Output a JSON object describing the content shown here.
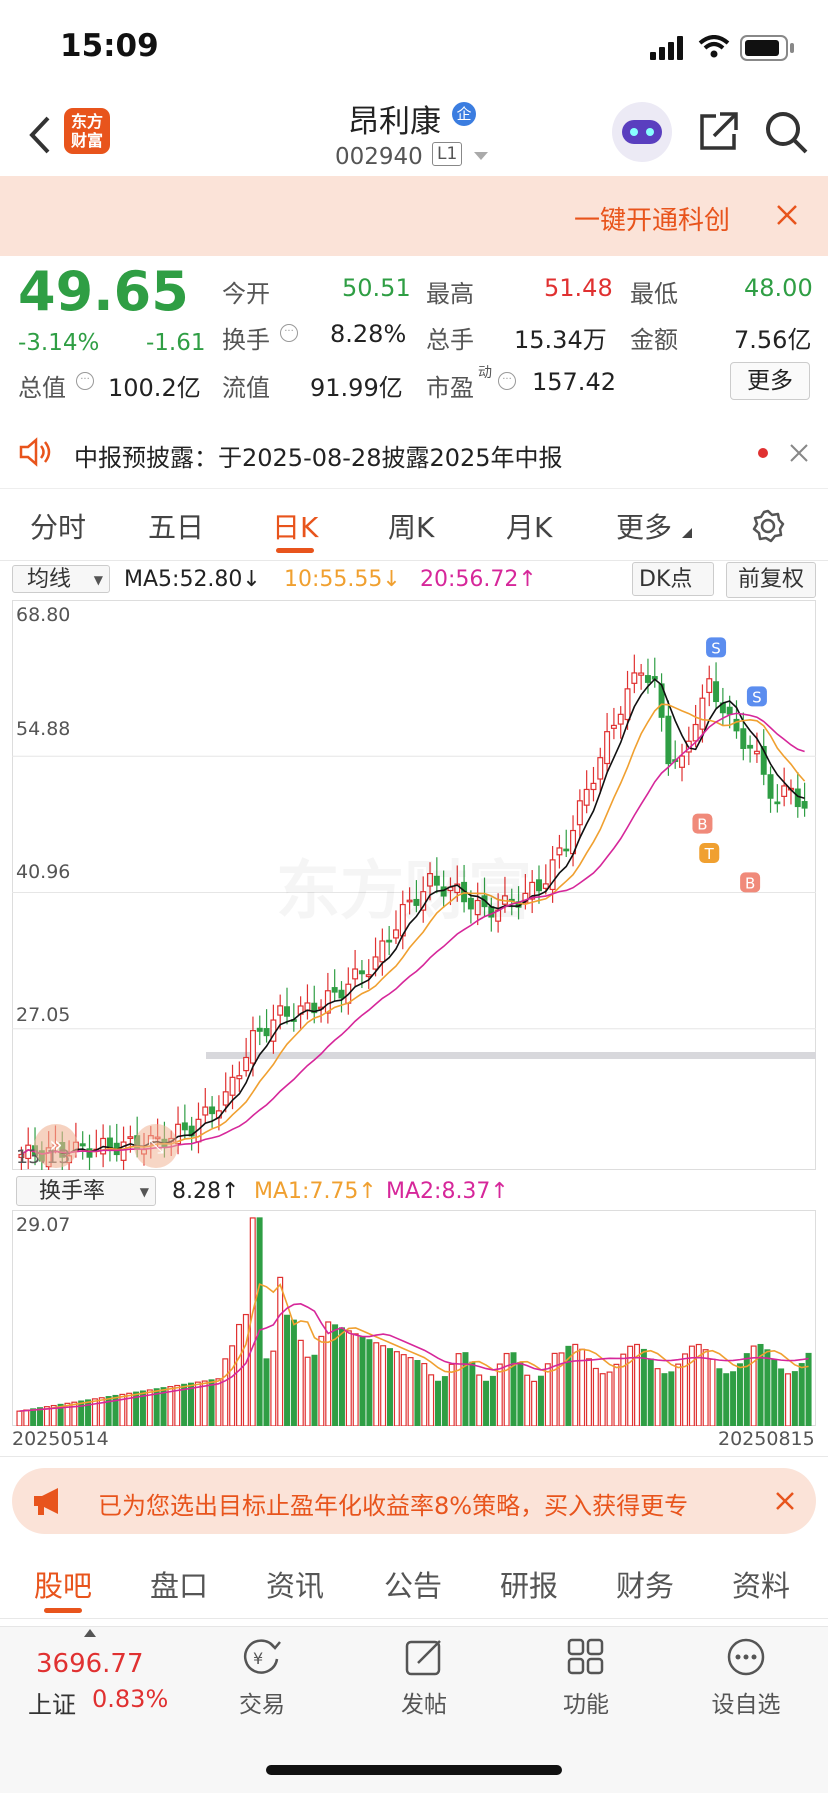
{
  "status_bar": {
    "time": "15:09"
  },
  "header": {
    "brand": "东方\n财富",
    "brand_line1": "东方",
    "brand_line2": "财富",
    "stock_name": "昂利康",
    "stock_badge": "企",
    "stock_code": "002940",
    "level": "L1"
  },
  "promo": {
    "text": "一键开通科创"
  },
  "quote": {
    "price": "49.65",
    "change_pct": "-3.14%",
    "change": "-1.61",
    "fields": [
      {
        "label": "今开",
        "value": "50.51",
        "color": "green"
      },
      {
        "label": "最高",
        "value": "51.48",
        "color": "red"
      },
      {
        "label": "最低",
        "value": "48.00",
        "color": "green"
      },
      {
        "label": "换手",
        "value": "8.28%",
        "color": "dark"
      },
      {
        "label": "总手",
        "value": "15.34万",
        "color": "dark"
      },
      {
        "label": "金额",
        "value": "7.56亿",
        "color": "dark"
      },
      {
        "label": "总值",
        "value": "100.2亿",
        "color": "dark"
      },
      {
        "label": "流值",
        "value": "91.99亿",
        "color": "dark"
      },
      {
        "label": "市盈",
        "value": "157.42",
        "color": "dark"
      }
    ],
    "pe_superscript": "动",
    "more_button": "更多"
  },
  "notice": {
    "text": "中报预披露：于2025-08-28披露2025年中报"
  },
  "tabs": [
    "分时",
    "五日",
    "日K",
    "周K",
    "月K",
    "更多"
  ],
  "active_tab": "日K",
  "kline": {
    "indicator_select": "均线",
    "ma5": "MA5:52.80↓",
    "ma10": "10:55.55↓",
    "ma20": "20:56.72↑",
    "dk_button": "DK点",
    "fq_button": "前复权",
    "y_labels": [
      "68.80",
      "54.88",
      "40.96",
      "27.05",
      "13.13"
    ],
    "watermark": "东方财富",
    "markers": [
      "S",
      "S",
      "B",
      "T",
      "B"
    ]
  },
  "volume": {
    "indicator_select": "换手率",
    "value": "8.28↑",
    "ma1": "MA1:7.75↑",
    "ma2": "MA2:8.37↑",
    "y_top": "29.07",
    "date_start": "20250514",
    "date_end": "20250815"
  },
  "ad": {
    "text": "已为您选出目标止盈年化收益率8%策略，买入获得更专"
  },
  "sub_tabs": [
    "股吧",
    "盘口",
    "资讯",
    "公告",
    "研报",
    "财务",
    "资料"
  ],
  "active_sub_tab": "股吧",
  "bottom_bar": {
    "index_value": "3696.77",
    "index_name": "上证",
    "index_change": "0.83%",
    "items": [
      "交易",
      "发帖",
      "功能",
      "设自选"
    ]
  },
  "colors": {
    "up": "#e03131",
    "down": "#2f9e44",
    "accent": "#e8541c",
    "ma10": "#f0a030",
    "ma20": "#d6279a"
  },
  "chart_data": {
    "type": "candlestick",
    "series": [
      {
        "name": "MA5",
        "values": [
          52.8
        ]
      },
      {
        "name": "MA10",
        "values": [
          55.55
        ]
      },
      {
        "name": "MA20",
        "values": [
          56.72
        ]
      }
    ],
    "ylim": [
      13.13,
      68.8
    ],
    "x_range": [
      "20250514",
      "20250815"
    ],
    "volume_ylim": [
      0,
      29.07
    ]
  }
}
